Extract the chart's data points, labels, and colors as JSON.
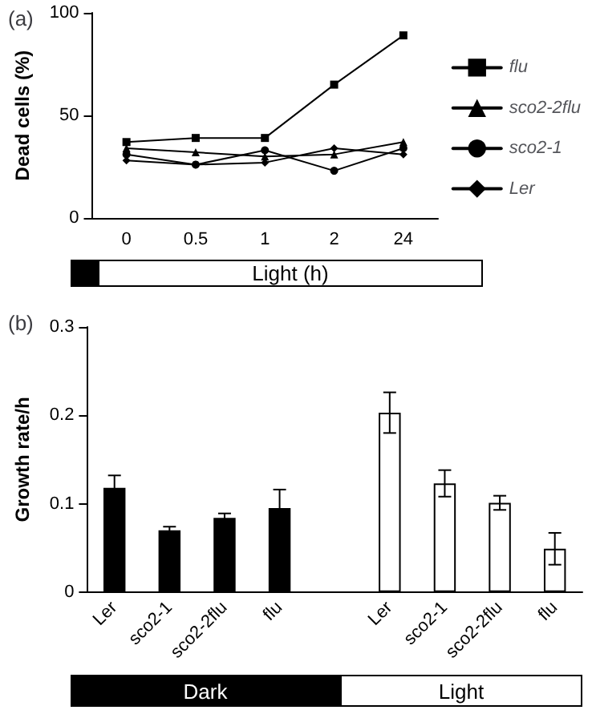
{
  "chart_data": [
    {
      "type": "line",
      "title": "(a)",
      "ylabel": "Dead cells (%)",
      "xlabel": "Light  (h)",
      "categories": [
        "0",
        "0.5",
        "1",
        "2",
        "24"
      ],
      "ylim": [
        0,
        100
      ],
      "yticks": [
        0,
        50,
        100
      ],
      "grid": false,
      "legend": "right",
      "line_style": "solid",
      "series": [
        {
          "name": "flu",
          "color": "#000000",
          "marker": "square",
          "values": [
            37,
            39,
            39,
            65,
            89
          ]
        },
        {
          "name": "sco2-2flu",
          "color": "#000000",
          "marker": "triangle",
          "values": [
            34,
            32,
            30,
            31,
            37
          ]
        },
        {
          "name": "sco2-1",
          "color": "#000000",
          "marker": "circle",
          "values": [
            31,
            26,
            33,
            23,
            34
          ]
        },
        {
          "name": "Ler",
          "color": "#000000",
          "marker": "diamond",
          "values": [
            28,
            26,
            27,
            34,
            31
          ]
        }
      ]
    },
    {
      "type": "bar",
      "title": "(b)",
      "ylabel": "Growth rate/h",
      "categories": [
        "Ler",
        "sco2-1",
        "sco2-2flu",
        "flu",
        null,
        "Ler",
        "sco2-1",
        "sco2-2flu",
        "flu"
      ],
      "ylim": [
        0,
        0.3
      ],
      "yticks": [
        0,
        0.1,
        0.2,
        0.3
      ],
      "grid": false,
      "legend": false,
      "values": [
        0.118,
        0.07,
        0.084,
        0.095,
        null,
        0.203,
        0.123,
        0.101,
        0.049
      ],
      "errors": [
        0.014,
        0.004,
        0.005,
        0.021,
        null,
        0.023,
        0.015,
        0.008,
        0.018
      ],
      "colors": [
        "#000000",
        "#000000",
        "#000000",
        "#000000",
        null,
        "#ffffff",
        "#ffffff",
        "#ffffff",
        "#ffffff"
      ],
      "annotations": [
        "Dark",
        "Light"
      ]
    }
  ]
}
